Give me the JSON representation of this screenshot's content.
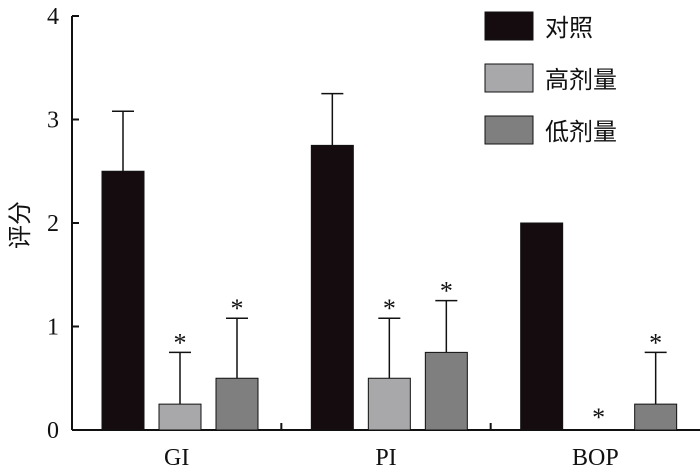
{
  "chart_data": {
    "type": "bar",
    "title": "",
    "xlabel": "",
    "ylabel": "评分",
    "ylim": [
      0,
      4
    ],
    "yticks": [
      0,
      1,
      2,
      3,
      4
    ],
    "grid": false,
    "legend_position": "top-right",
    "categories": [
      "GI",
      "PI",
      "BOP"
    ],
    "series": [
      {
        "name": "对照",
        "color": "#150c0f",
        "values": [
          2.5,
          2.75,
          2.0
        ],
        "error": [
          0.58,
          0.5,
          0.0
        ],
        "significant": [
          false,
          false,
          false
        ]
      },
      {
        "name": "高剂量",
        "color": "#a8a8aa",
        "values": [
          0.25,
          0.5,
          0.0
        ],
        "error": [
          0.5,
          0.58,
          0.0
        ],
        "significant": [
          true,
          true,
          true
        ]
      },
      {
        "name": "低剂量",
        "color": "#7f7f80",
        "values": [
          0.5,
          0.75,
          0.25
        ],
        "error": [
          0.58,
          0.5,
          0.5
        ],
        "significant": [
          true,
          true,
          true
        ]
      }
    ],
    "significance_marker": "*"
  }
}
